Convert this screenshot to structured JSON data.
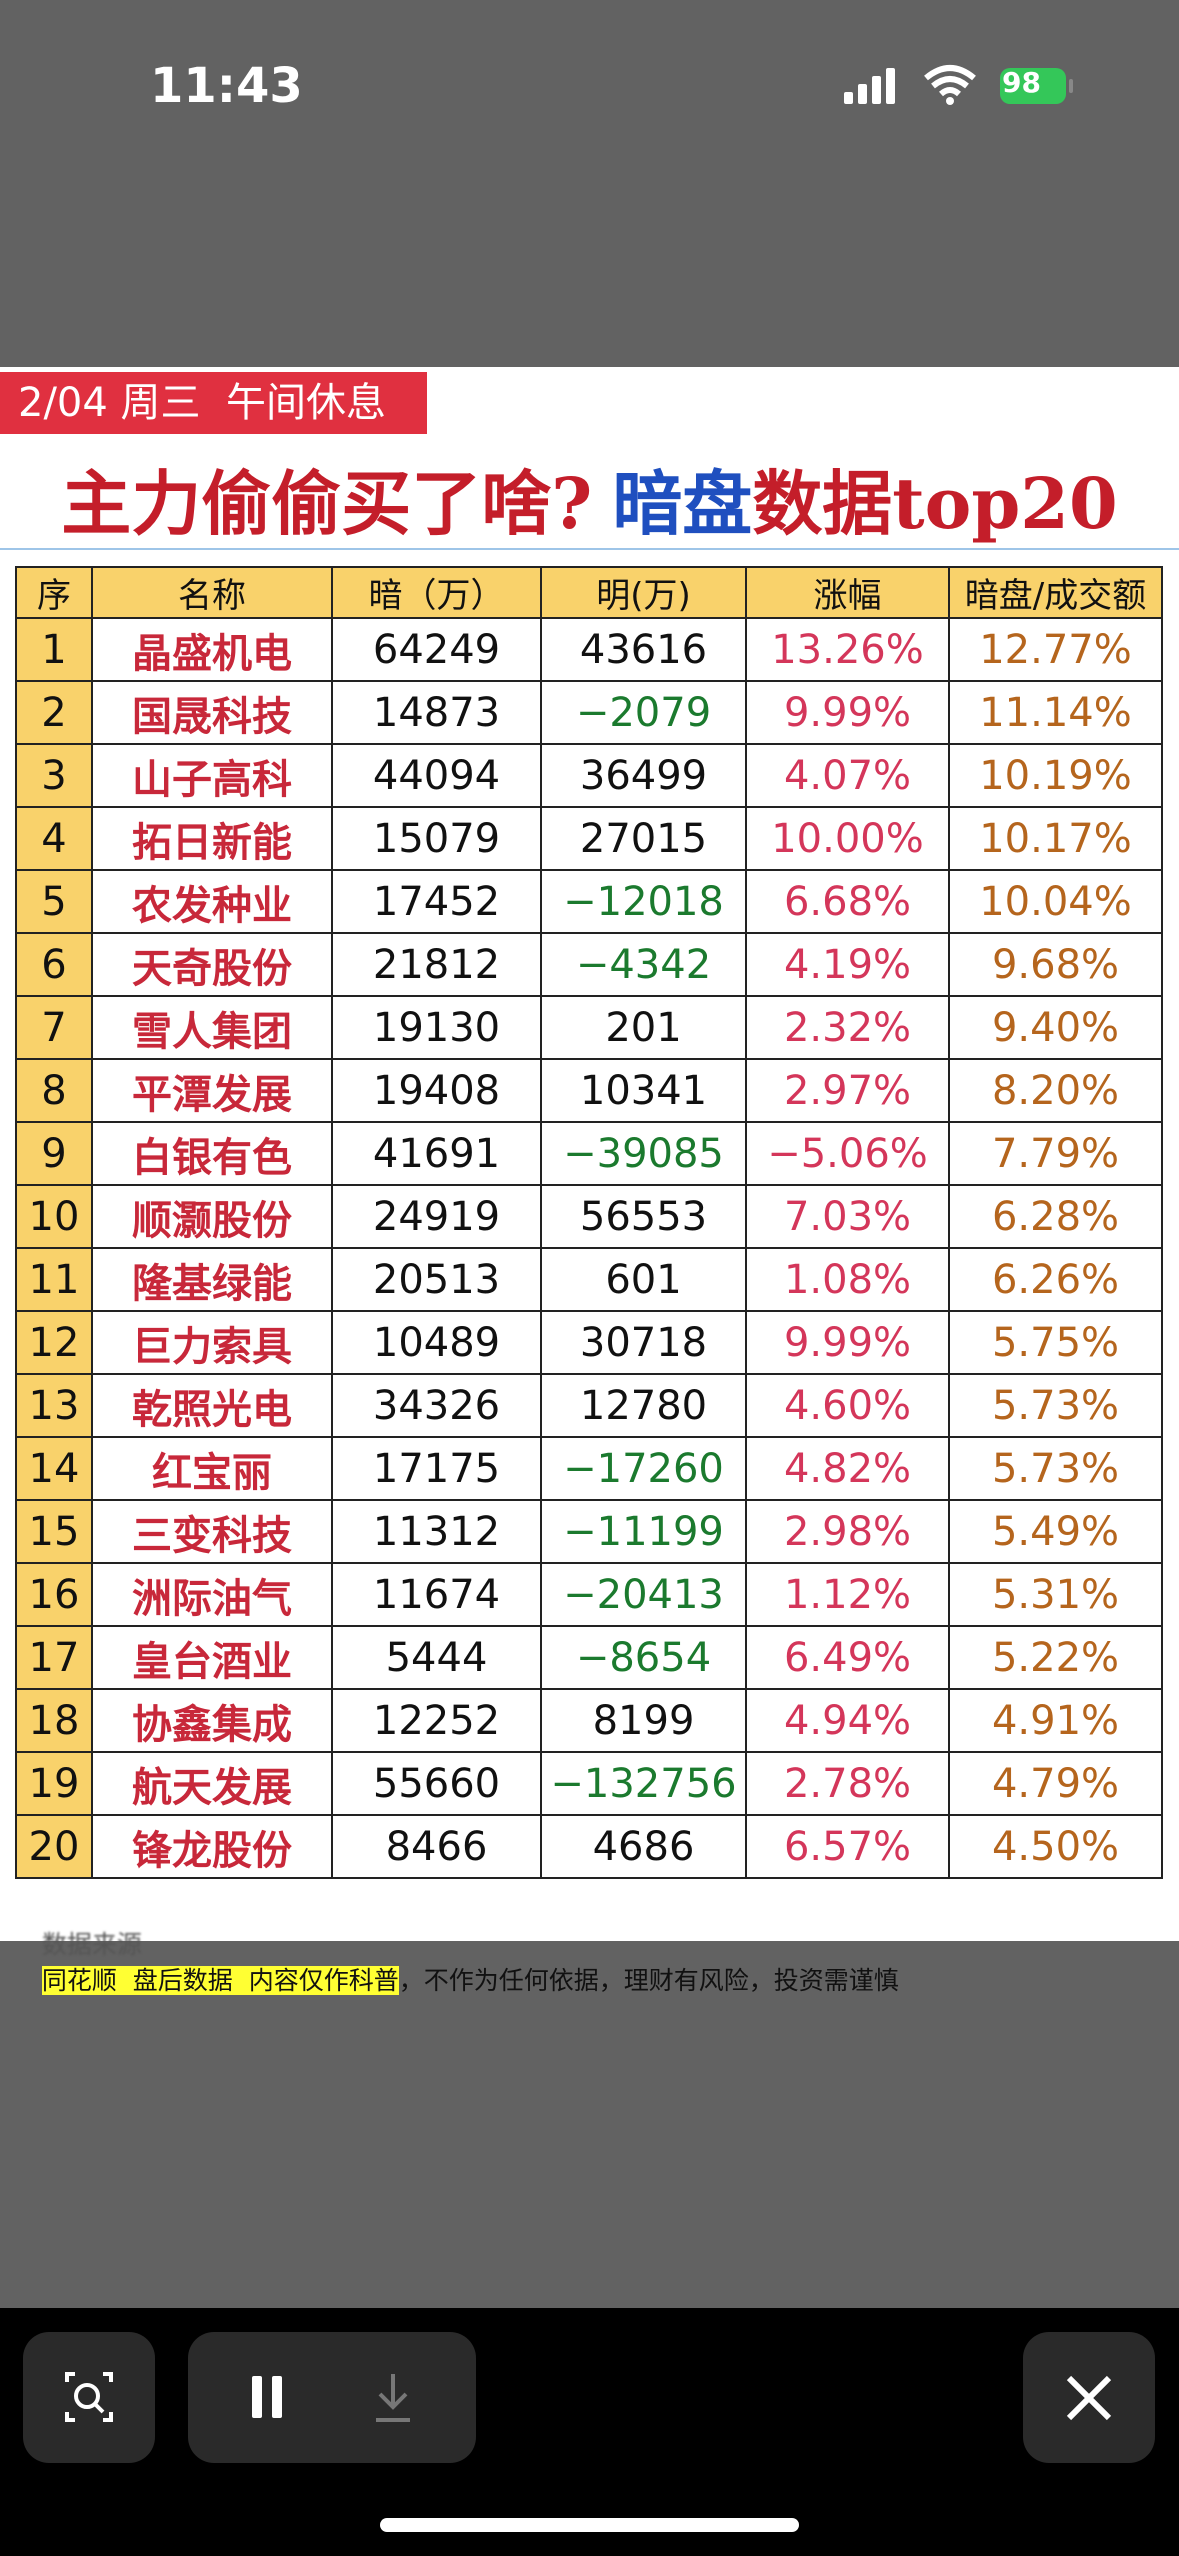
{
  "status_bar": {
    "time": "11:43",
    "battery": "98"
  },
  "header": {
    "date_tag": "2/04 周三  午间休息",
    "title_main": "主力偷偷买了啥?",
    "title_blue": "暗盘",
    "title_red": "数据top20"
  },
  "table": {
    "columns": [
      "序",
      "名称",
      "暗（万）",
      "明(万)",
      "涨幅",
      "暗盘/成交额"
    ],
    "rows": [
      [
        "1",
        "晶盛机电",
        "64249",
        "43616",
        "13.26%",
        "12.77%"
      ],
      [
        "2",
        "国晟科技",
        "14873",
        "−2079",
        "9.99%",
        "11.14%"
      ],
      [
        "3",
        "山子高科",
        "44094",
        "36499",
        "4.07%",
        "10.19%"
      ],
      [
        "4",
        "拓日新能",
        "15079",
        "27015",
        "10.00%",
        "10.17%"
      ],
      [
        "5",
        "农发种业",
        "17452",
        "−12018",
        "6.68%",
        "10.04%"
      ],
      [
        "6",
        "天奇股份",
        "21812",
        "−4342",
        "4.19%",
        "9.68%"
      ],
      [
        "7",
        "雪人集团",
        "19130",
        "201",
        "2.32%",
        "9.40%"
      ],
      [
        "8",
        "平潭发展",
        "19408",
        "10341",
        "2.97%",
        "8.20%"
      ],
      [
        "9",
        "白银有色",
        "41691",
        "−39085",
        "−5.06%",
        "7.79%"
      ],
      [
        "10",
        "顺灏股份",
        "24919",
        "56553",
        "7.03%",
        "6.28%"
      ],
      [
        "11",
        "隆基绿能",
        "20513",
        "601",
        "1.08%",
        "6.26%"
      ],
      [
        "12",
        "巨力索具",
        "10489",
        "30718",
        "9.99%",
        "5.75%"
      ],
      [
        "13",
        "乾照光电",
        "34326",
        "12780",
        "4.60%",
        "5.73%"
      ],
      [
        "14",
        "红宝丽",
        "17175",
        "−17260",
        "4.82%",
        "5.73%"
      ],
      [
        "15",
        "三变科技",
        "11312",
        "−11199",
        "2.98%",
        "5.49%"
      ],
      [
        "16",
        "洲际油气",
        "11674",
        "−20413",
        "1.12%",
        "5.31%"
      ],
      [
        "17",
        "皇台酒业",
        "5444",
        "−8654",
        "6.49%",
        "5.22%"
      ],
      [
        "18",
        "协鑫集成",
        "12252",
        "8199",
        "4.94%",
        "4.91%"
      ],
      [
        "19",
        "航天发展",
        "55660",
        "−132756",
        "2.78%",
        "4.79%"
      ],
      [
        "20",
        "锋龙股份",
        "8466",
        "4686",
        "6.57%",
        "4.50%"
      ]
    ]
  },
  "footer": {
    "source": "数据来源",
    "highlight": "同花顺  盘后数据  内容仅作科普",
    "rest": "，不作为任何依据，理财有风险，投资需谨慎"
  }
}
